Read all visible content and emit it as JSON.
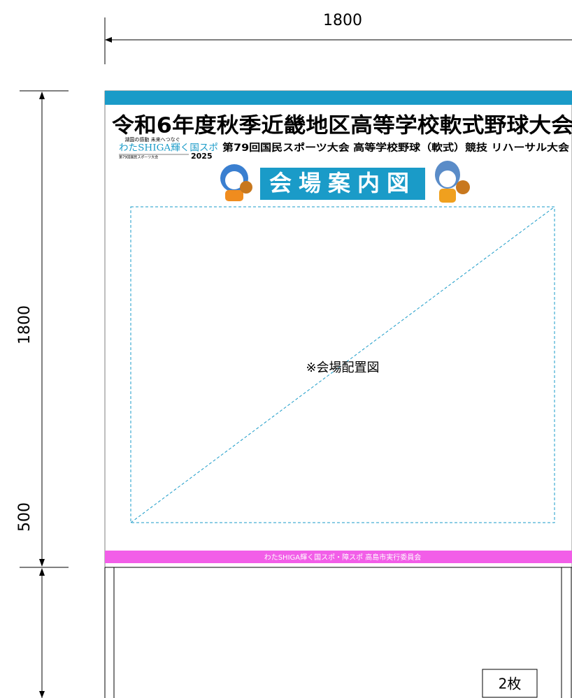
{
  "dimensions": {
    "top_width": "1800",
    "left_board_height": "1800",
    "left_post_height": "500"
  },
  "board": {
    "title": "令和6年度秋季近畿地区高等学校軟式野球大会",
    "logo": {
      "tagline": "湖国の感動 未来へつなぐ",
      "name": "わたSHIGA輝く国スポ",
      "sub": "第79回国民スポーツ大会",
      "year": "2025"
    },
    "subtitle": "第79回国民スポーツ大会 高等学校野球（軟式）競技 リハーサル大会",
    "heading": "会場案内図",
    "placeholder": "※会場配置図",
    "footer": "わたSHIGA輝く国スポ・障スポ 高島市実行委員会"
  },
  "post": {
    "note": "2枚"
  }
}
